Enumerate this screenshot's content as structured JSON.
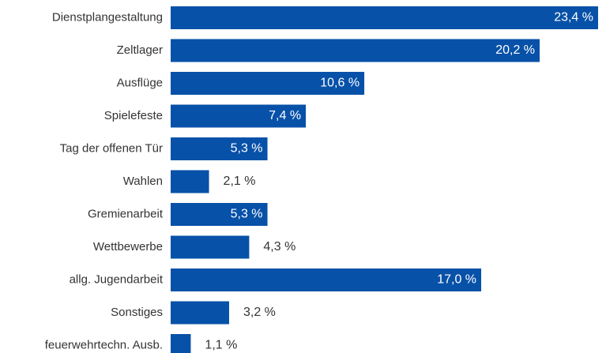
{
  "chart_data": {
    "type": "bar",
    "orientation": "horizontal",
    "categories": [
      "Dienstplangestaltung",
      "Zeltlager",
      "Ausflüge",
      "Spielefeste",
      "Tag der offenen Tür",
      "Wahlen",
      "Gremienarbeit",
      "Wettbewerbe",
      "allg. Jugendarbeit",
      "Sonstiges",
      "feuerwehrtechn. Ausb."
    ],
    "values": [
      23.4,
      20.2,
      10.6,
      7.4,
      5.3,
      2.1,
      5.3,
      4.3,
      17.0,
      3.2,
      1.1
    ],
    "value_labels": [
      "23,4 %",
      "20,2 %",
      "10,6 %",
      "7,4 %",
      "5,3 %",
      "2,1 %",
      "5,3 %",
      "4,3 %",
      "17,0 %",
      "3,2 %",
      "1,1 %"
    ],
    "xlim": [
      0,
      23.4
    ],
    "grid": false,
    "legend": "none",
    "colors": {
      "bar": "#0751a8",
      "label_inside": "#ffffff",
      "label_outside": "#333333",
      "category_text": "#333333"
    }
  }
}
